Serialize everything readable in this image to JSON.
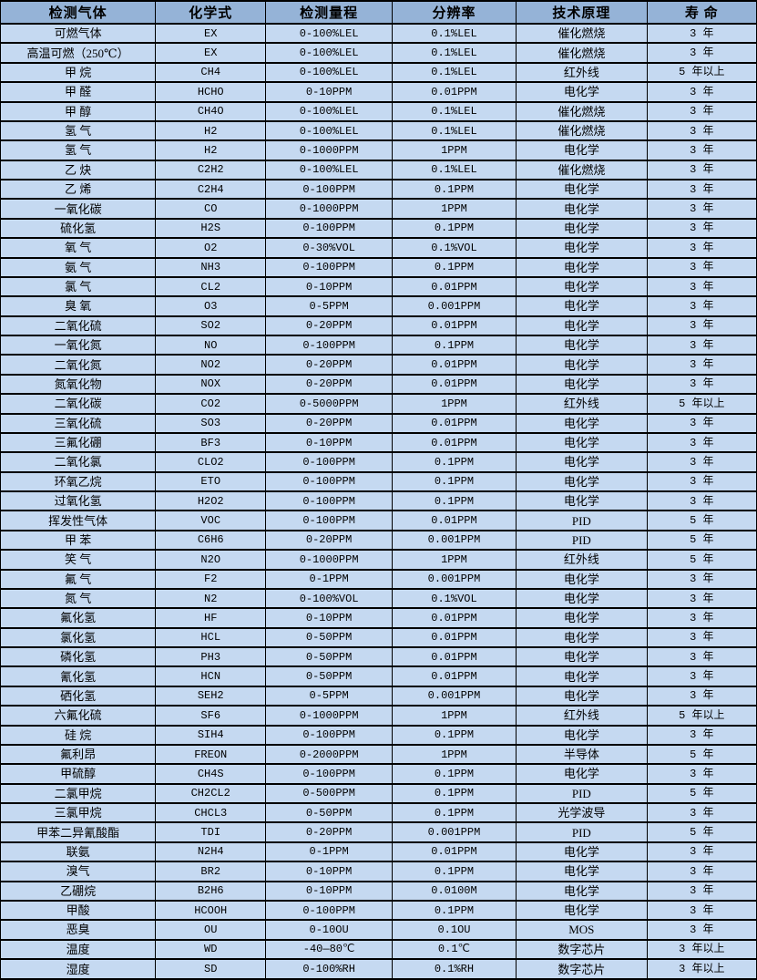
{
  "colors": {
    "header_bg": "#95b3d7",
    "row_bg": "#c5d9f1",
    "border": "#000000",
    "text": "#000000"
  },
  "table": {
    "headers": [
      "检测气体",
      "化学式",
      "检测量程",
      "分辨率",
      "技术原理",
      "寿 命"
    ],
    "rows": [
      [
        "可燃气体",
        "EX",
        "0-100%LEL",
        "0.1%LEL",
        "催化燃烧",
        "3 年"
      ],
      [
        "高温可燃（250℃）",
        "EX",
        "0-100%LEL",
        "0.1%LEL",
        "催化燃烧",
        "3 年"
      ],
      [
        "甲 烷",
        "CH4",
        "0-100%LEL",
        "0.1%LEL",
        "红外线",
        "5 年以上"
      ],
      [
        "甲 醛",
        "HCHO",
        "0-10PPM",
        "0.01PPM",
        "电化学",
        "3 年"
      ],
      [
        "甲 醇",
        "CH4O",
        "0-100%LEL",
        "0.1%LEL",
        "催化燃烧",
        "3 年"
      ],
      [
        "氢 气",
        "H2",
        "0-100%LEL",
        "0.1%LEL",
        "催化燃烧",
        "3 年"
      ],
      [
        "氢 气",
        "H2",
        "0-1000PPM",
        "1PPM",
        "电化学",
        "3 年"
      ],
      [
        "乙 炔",
        "C2H2",
        "0-100%LEL",
        "0.1%LEL",
        "催化燃烧",
        "3 年"
      ],
      [
        "乙 烯",
        "C2H4",
        "0-100PPM",
        "0.1PPM",
        "电化学",
        "3 年"
      ],
      [
        "一氧化碳",
        "CO",
        "0-1000PPM",
        "1PPM",
        "电化学",
        "3 年"
      ],
      [
        "硫化氢",
        "H2S",
        "0-100PPM",
        "0.1PPM",
        "电化学",
        "3 年"
      ],
      [
        "氧 气",
        "O2",
        "0-30%VOL",
        "0.1%VOL",
        "电化学",
        "3 年"
      ],
      [
        "氨 气",
        "NH3",
        "0-100PPM",
        "0.1PPM",
        "电化学",
        "3 年"
      ],
      [
        "氯 气",
        "CL2",
        "0-10PPM",
        "0.01PPM",
        "电化学",
        "3 年"
      ],
      [
        "臭 氧",
        "O3",
        "0-5PPM",
        "0.001PPM",
        "电化学",
        "3 年"
      ],
      [
        "二氧化硫",
        "SO2",
        "0-20PPM",
        "0.01PPM",
        "电化学",
        "3 年"
      ],
      [
        "一氧化氮",
        "NO",
        "0-100PPM",
        "0.1PPM",
        "电化学",
        "3 年"
      ],
      [
        "二氧化氮",
        "NO2",
        "0-20PPM",
        "0.01PPM",
        "电化学",
        "3 年"
      ],
      [
        "氮氧化物",
        "NOX",
        "0-20PPM",
        "0.01PPM",
        "电化学",
        "3 年"
      ],
      [
        "二氧化碳",
        "CO2",
        "0-5000PPM",
        "1PPM",
        "红外线",
        "5 年以上"
      ],
      [
        "三氧化硫",
        "SO3",
        "0-20PPM",
        "0.01PPM",
        "电化学",
        "3 年"
      ],
      [
        "三氟化硼",
        "BF3",
        "0-10PPM",
        "0.01PPM",
        "电化学",
        "3 年"
      ],
      [
        "二氧化氯",
        "CLO2",
        "0-100PPM",
        "0.1PPM",
        "电化学",
        "3 年"
      ],
      [
        "环氧乙烷",
        "ETO",
        "0-100PPM",
        "0.1PPM",
        "电化学",
        "3 年"
      ],
      [
        "过氧化氢",
        "H2O2",
        "0-100PPM",
        "0.1PPM",
        "电化学",
        "3 年"
      ],
      [
        "挥发性气体",
        "VOC",
        "0-100PPM",
        "0.01PPM",
        "PID",
        "5 年"
      ],
      [
        "甲 苯",
        "C6H6",
        "0-20PPM",
        "0.001PPM",
        "PID",
        "5 年"
      ],
      [
        "笑 气",
        "N2O",
        "0-1000PPM",
        "1PPM",
        "红外线",
        "5 年"
      ],
      [
        "氟 气",
        "F2",
        "0-1PPM",
        "0.001PPM",
        "电化学",
        "3 年"
      ],
      [
        "氮 气",
        "N2",
        "0-100%VOL",
        "0.1%VOL",
        "电化学",
        "3 年"
      ],
      [
        "氟化氢",
        "HF",
        "0-10PPM",
        "0.01PPM",
        "电化学",
        "3 年"
      ],
      [
        "氯化氢",
        "HCL",
        "0-50PPM",
        "0.01PPM",
        "电化学",
        "3 年"
      ],
      [
        "磷化氢",
        "PH3",
        "0-50PPM",
        "0.01PPM",
        "电化学",
        "3 年"
      ],
      [
        "氰化氢",
        "HCN",
        "0-50PPM",
        "0.01PPM",
        "电化学",
        "3 年"
      ],
      [
        "硒化氢",
        "SEH2",
        "0-5PPM",
        "0.001PPM",
        "电化学",
        "3 年"
      ],
      [
        "六氟化硫",
        "SF6",
        "0-1000PPM",
        "1PPM",
        "红外线",
        "5 年以上"
      ],
      [
        "硅 烷",
        "SIH4",
        "0-100PPM",
        "0.1PPM",
        "电化学",
        "3 年"
      ],
      [
        "氟利昂",
        "FREON",
        "0-2000PPM",
        "1PPM",
        "半导体",
        "5 年"
      ],
      [
        "甲硫醇",
        "CH4S",
        "0-100PPM",
        "0.1PPM",
        "电化学",
        "3 年"
      ],
      [
        "二氯甲烷",
        "CH2CL2",
        "0-500PPM",
        "0.1PPM",
        "PID",
        "5 年"
      ],
      [
        "三氯甲烷",
        "CHCL3",
        "0-50PPM",
        "0.1PPM",
        "光学波导",
        "3 年"
      ],
      [
        "甲苯二异氰酸酯",
        "TDI",
        "0-20PPM",
        "0.001PPM",
        "PID",
        "5 年"
      ],
      [
        "联氨",
        "N2H4",
        "0-1PPM",
        "0.01PPM",
        "电化学",
        "3 年"
      ],
      [
        "溴气",
        "BR2",
        "0-10PPM",
        "0.1PPM",
        "电化学",
        "3 年"
      ],
      [
        "乙硼烷",
        "B2H6",
        "0-10PPM",
        "0.0100M",
        "电化学",
        "3 年"
      ],
      [
        "甲酸",
        "HCOOH",
        "0-100PPM",
        "0.1PPM",
        "电化学",
        "3 年"
      ],
      [
        "恶臭",
        "OU",
        "0-10OU",
        "0.1OU",
        "MOS",
        "3 年"
      ],
      [
        "温度",
        "WD",
        "-40—80℃",
        "0.1℃",
        "数字芯片",
        "3 年以上"
      ],
      [
        "湿度",
        "SD",
        "0-100%RH",
        "0.1%RH",
        "数字芯片",
        "3 年以上"
      ]
    ]
  }
}
